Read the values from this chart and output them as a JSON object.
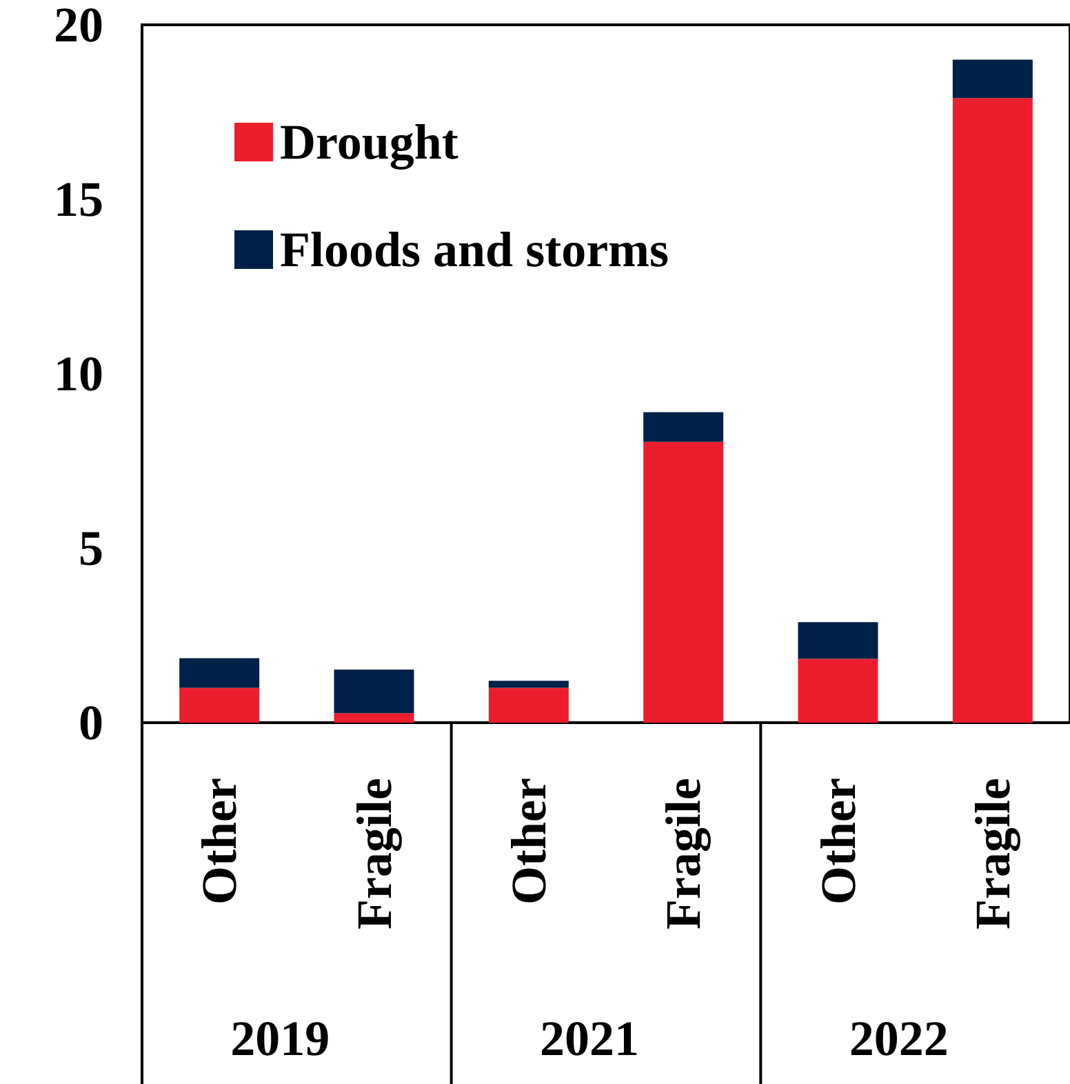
{
  "chart_data": {
    "type": "bar",
    "stacked": true,
    "categories": [
      "Other",
      "Fragile",
      "Other",
      "Fragile",
      "Other",
      "Fragile"
    ],
    "series": [
      {
        "name": "Drought",
        "color": "#ec1e2e",
        "values": [
          1.0,
          0.27,
          1.0,
          8.05,
          1.83,
          17.9
        ]
      },
      {
        "name": "Floods and storms",
        "color": "#002147",
        "values": [
          0.85,
          1.25,
          0.2,
          0.85,
          1.05,
          1.1
        ]
      }
    ],
    "annotations": [
      "2019",
      "2021",
      "2022"
    ],
    "ylim": [
      0,
      20
    ],
    "yticks": [
      0,
      5,
      10,
      15,
      20
    ],
    "grid": false,
    "legend": "top left"
  }
}
